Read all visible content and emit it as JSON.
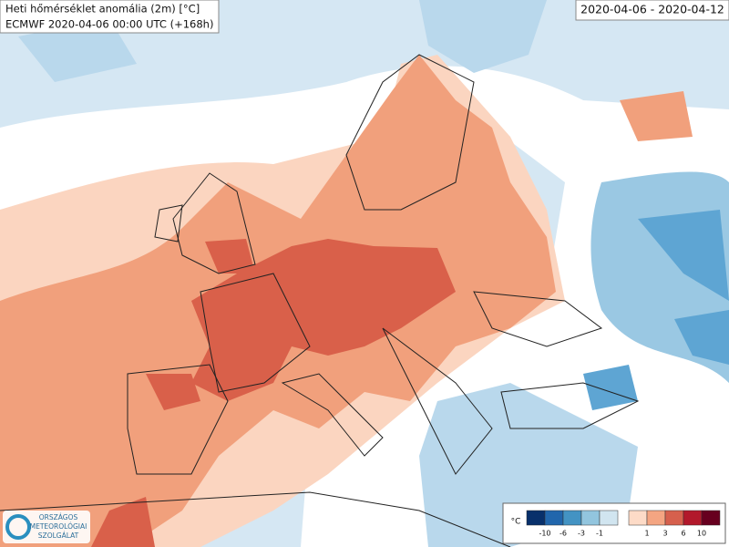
{
  "header": {
    "title": "Heti hőmérséklet anomália (2m) [°C]",
    "subtitle": "ECMWF 2020-04-06 00:00 UTC (+168h)",
    "period": "2020-04-06 - 2020-04-12"
  },
  "legend": {
    "unit": "°C",
    "ticks": [
      -10,
      -6,
      -3,
      -1,
      1,
      3,
      6,
      10
    ],
    "cold_colors": [
      "#08306b",
      "#2166ac",
      "#4393c3",
      "#92c5de",
      "#d1e5f0"
    ],
    "warm_colors": [
      "#fddbc7",
      "#f4a582",
      "#d6604d",
      "#b2182b",
      "#67001f"
    ]
  },
  "logo": {
    "lines": [
      "ORSZÁGOS",
      "METEOROLÓGIAI",
      "SZOLGÁLAT"
    ]
  }
}
